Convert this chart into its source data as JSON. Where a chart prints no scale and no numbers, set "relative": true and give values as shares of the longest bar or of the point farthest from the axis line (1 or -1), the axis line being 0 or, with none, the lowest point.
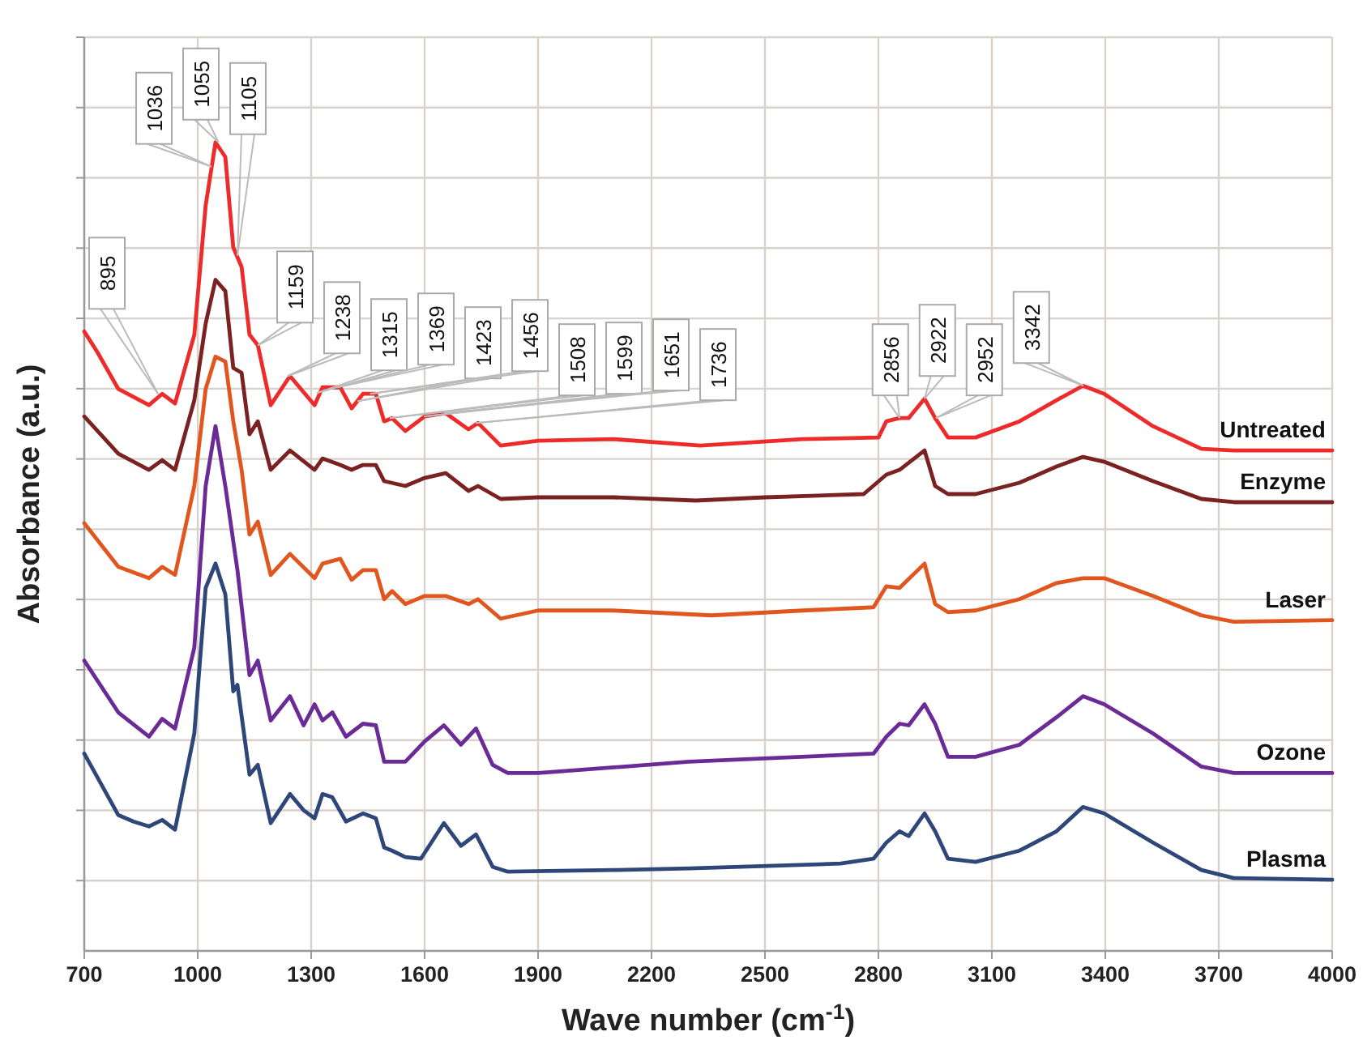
{
  "chart_data": {
    "type": "line",
    "xlabel": "Wave number (cm$^{-1}$)",
    "ylabel": "Absorbance (a.u.)",
    "relative": true,
    "grid": true,
    "xlim": [
      700,
      4000
    ],
    "xticks": [
      700,
      1000,
      1300,
      1600,
      1900,
      2200,
      2500,
      2800,
      3100,
      3400,
      3700,
      4000
    ],
    "x": [
      700,
      734,
      790,
      871,
      906,
      940,
      991,
      1021,
      1047,
      1073,
      1094,
      1116,
      1137,
      1159,
      1193,
      1244,
      1309,
      1330,
      1377,
      1407,
      1437,
      1471,
      1493,
      1514,
      1549,
      1600,
      1656,
      1716,
      1741,
      1801,
      1900,
      2100,
      2329,
      2600,
      2800,
      2821,
      2856,
      2880,
      2922,
      2950,
      2984,
      3057,
      3173,
      3271,
      3341,
      3397,
      3526,
      3654,
      3740,
      4000
    ],
    "series": [
      {
        "name": "Untreated",
        "color": "#ee2b2b",
        "values": [
          0.766,
          0.741,
          0.695,
          0.675,
          0.689,
          0.677,
          0.762,
          0.922,
          1.0,
          0.982,
          0.87,
          0.846,
          0.762,
          0.749,
          0.675,
          0.711,
          0.675,
          0.697,
          0.697,
          0.671,
          0.689,
          0.689,
          0.655,
          0.659,
          0.643,
          0.661,
          0.665,
          0.645,
          0.653,
          0.625,
          0.631,
          0.633,
          0.625,
          0.633,
          0.635,
          0.655,
          0.659,
          0.659,
          0.683,
          0.659,
          0.635,
          0.635,
          0.655,
          0.681,
          0.699,
          0.689,
          0.649,
          0.621,
          0.619,
          0.619
        ]
      },
      {
        "name": "Enzyme",
        "color": "#7a2222",
        "x": [
          700,
          790,
          871,
          906,
          940,
          991,
          1021,
          1047,
          1073,
          1094,
          1116,
          1137,
          1159,
          1193,
          1244,
          1309,
          1330,
          1377,
          1407,
          1437,
          1471,
          1493,
          1549,
          1600,
          1656,
          1716,
          1741,
          1801,
          1900,
          2100,
          2317,
          2500,
          2761,
          2821,
          2856,
          2922,
          2950,
          2984,
          3057,
          3173,
          3271,
          3341,
          3397,
          3526,
          3654,
          3740,
          4000
        ],
        "values": [
          0.661,
          0.615,
          0.595,
          0.607,
          0.595,
          0.681,
          0.776,
          0.83,
          0.816,
          0.721,
          0.715,
          0.639,
          0.655,
          0.595,
          0.619,
          0.595,
          0.609,
          0.601,
          0.595,
          0.601,
          0.601,
          0.581,
          0.575,
          0.585,
          0.591,
          0.569,
          0.575,
          0.559,
          0.561,
          0.561,
          0.557,
          0.561,
          0.565,
          0.589,
          0.595,
          0.619,
          0.575,
          0.565,
          0.565,
          0.579,
          0.599,
          0.611,
          0.605,
          0.581,
          0.559,
          0.555,
          0.555
        ]
      },
      {
        "name": "Laser",
        "color": "#e0561e",
        "x": [
          700,
          790,
          871,
          906,
          940,
          991,
          1021,
          1047,
          1073,
          1094,
          1116,
          1137,
          1159,
          1193,
          1244,
          1309,
          1330,
          1377,
          1407,
          1437,
          1471,
          1493,
          1514,
          1549,
          1600,
          1656,
          1716,
          1741,
          1801,
          1900,
          2100,
          2359,
          2600,
          2787,
          2821,
          2856,
          2922,
          2950,
          2984,
          3057,
          3173,
          3271,
          3341,
          3397,
          3526,
          3654,
          3740,
          4000
        ],
        "values": [
          0.529,
          0.475,
          0.461,
          0.475,
          0.465,
          0.575,
          0.695,
          0.735,
          0.729,
          0.655,
          0.595,
          0.515,
          0.531,
          0.465,
          0.491,
          0.461,
          0.479,
          0.485,
          0.459,
          0.471,
          0.471,
          0.435,
          0.445,
          0.429,
          0.439,
          0.439,
          0.429,
          0.435,
          0.411,
          0.421,
          0.421,
          0.415,
          0.421,
          0.425,
          0.451,
          0.449,
          0.479,
          0.429,
          0.419,
          0.421,
          0.435,
          0.455,
          0.461,
          0.461,
          0.439,
          0.415,
          0.407,
          0.409
        ]
      },
      {
        "name": "Ozone",
        "color": "#6a2b96",
        "x": [
          700,
          790,
          871,
          906,
          940,
          991,
          1021,
          1047,
          1073,
          1105,
          1137,
          1159,
          1193,
          1244,
          1280,
          1309,
          1330,
          1356,
          1392,
          1437,
          1471,
          1493,
          1549,
          1600,
          1651,
          1696,
          1736,
          1780,
          1820,
          1900,
          2299,
          2787,
          2821,
          2856,
          2880,
          2922,
          2950,
          2984,
          3057,
          3173,
          3271,
          3341,
          3397,
          3526,
          3654,
          3740,
          4000
        ],
        "values": [
          0.359,
          0.295,
          0.265,
          0.287,
          0.275,
          0.375,
          0.575,
          0.649,
          0.575,
          0.471,
          0.341,
          0.359,
          0.285,
          0.315,
          0.279,
          0.305,
          0.285,
          0.295,
          0.265,
          0.281,
          0.279,
          0.234,
          0.234,
          0.259,
          0.279,
          0.255,
          0.275,
          0.23,
          0.22,
          0.22,
          0.234,
          0.244,
          0.265,
          0.281,
          0.279,
          0.305,
          0.281,
          0.24,
          0.24,
          0.255,
          0.289,
          0.315,
          0.305,
          0.269,
          0.228,
          0.22,
          0.22
        ]
      },
      {
        "name": "Plasma",
        "color": "#2e4778",
        "x": [
          700,
          790,
          830,
          871,
          906,
          940,
          991,
          1021,
          1047,
          1073,
          1094,
          1105,
          1137,
          1159,
          1193,
          1244,
          1280,
          1309,
          1330,
          1356,
          1392,
          1437,
          1471,
          1493,
          1514,
          1549,
          1590,
          1651,
          1696,
          1736,
          1780,
          1820,
          2100,
          2300,
          2700,
          2787,
          2821,
          2856,
          2880,
          2922,
          2950,
          2984,
          3057,
          3173,
          3271,
          3341,
          3397,
          3526,
          3654,
          3740,
          4000
        ],
        "values": [
          0.244,
          0.168,
          0.16,
          0.154,
          0.162,
          0.15,
          0.269,
          0.449,
          0.479,
          0.441,
          0.321,
          0.329,
          0.218,
          0.23,
          0.158,
          0.194,
          0.174,
          0.164,
          0.194,
          0.19,
          0.16,
          0.17,
          0.164,
          0.128,
          0.124,
          0.116,
          0.114,
          0.158,
          0.13,
          0.144,
          0.104,
          0.098,
          0.1,
          0.102,
          0.108,
          0.114,
          0.134,
          0.148,
          0.142,
          0.17,
          0.148,
          0.114,
          0.11,
          0.124,
          0.148,
          0.178,
          0.17,
          0.134,
          0.1,
          0.09,
          0.088
        ]
      }
    ],
    "annotations": [
      {
        "text": "895",
        "x": 895,
        "y": 0.689
      },
      {
        "text": "1036",
        "x": 1036,
        "y": 0.97
      },
      {
        "text": "1055",
        "x": 1055,
        "y": 1.0
      },
      {
        "text": "1105",
        "x": 1105,
        "y": 0.86
      },
      {
        "text": "1159",
        "x": 1159,
        "y": 0.749
      },
      {
        "text": "1238",
        "x": 1238,
        "y": 0.711
      },
      {
        "text": "1315",
        "x": 1315,
        "y": 0.69
      },
      {
        "text": "1369",
        "x": 1369,
        "y": 0.697
      },
      {
        "text": "1423",
        "x": 1423,
        "y": 0.68
      },
      {
        "text": "1456",
        "x": 1456,
        "y": 0.689
      },
      {
        "text": "1508",
        "x": 1508,
        "y": 0.659
      },
      {
        "text": "1599",
        "x": 1599,
        "y": 0.661
      },
      {
        "text": "1651",
        "x": 1651,
        "y": 0.665
      },
      {
        "text": "1736",
        "x": 1736,
        "y": 0.653
      },
      {
        "text": "2856",
        "x": 2856,
        "y": 0.659
      },
      {
        "text": "2922",
        "x": 2922,
        "y": 0.683
      },
      {
        "text": "2952",
        "x": 2952,
        "y": 0.659
      },
      {
        "text": "3342",
        "x": 3342,
        "y": 0.699
      }
    ]
  }
}
